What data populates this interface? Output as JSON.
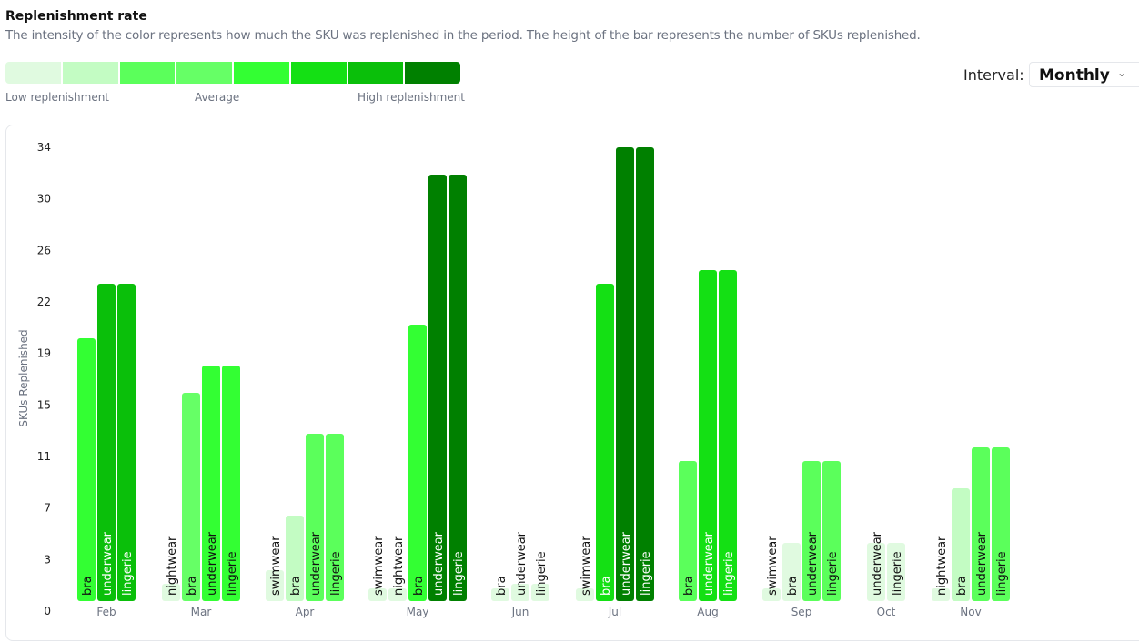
{
  "header": {
    "title": "Replenishment rate",
    "subtitle": "The intensity of the color represents how much the SKU was replenished in the period. The height of the bar represents the number of SKUs replenished."
  },
  "legend": {
    "colors": [
      "#e0fae0",
      "#c3fcc3",
      "#5bff5b",
      "#66ff66",
      "#33ff33",
      "#14e014",
      "#0abf0a",
      "#008000"
    ],
    "low": "Low replenishment",
    "mid": "Average",
    "high": "High replenishment"
  },
  "interval": {
    "label": "Interval:",
    "value": "Monthly",
    "icon": "chevron-down-icon"
  },
  "chart_data": {
    "type": "bar",
    "ylabel": "SKUs Replenished",
    "ylim": [
      0,
      34
    ],
    "yticks": [
      "0",
      "3",
      "7",
      "11",
      "15",
      "19",
      "22",
      "26",
      "30",
      "34"
    ],
    "groups": [
      {
        "month": "Feb",
        "bars": [
          {
            "sku": "bra",
            "value": 20,
            "level": 4
          },
          {
            "sku": "underwear",
            "value": 24,
            "level": 6
          },
          {
            "sku": "lingerie",
            "value": 24,
            "level": 6
          }
        ]
      },
      {
        "month": "Mar",
        "bars": [
          {
            "sku": "nightwear",
            "value": 2,
            "level": 0
          },
          {
            "sku": "bra",
            "value": 16,
            "level": 3
          },
          {
            "sku": "underwear",
            "value": 18,
            "level": 4
          },
          {
            "sku": "lingerie",
            "value": 18,
            "level": 4
          }
        ]
      },
      {
        "month": "Apr",
        "bars": [
          {
            "sku": "swimwear",
            "value": 3,
            "level": 0
          },
          {
            "sku": "bra",
            "value": 7,
            "level": 1
          },
          {
            "sku": "underwear",
            "value": 13,
            "level": 2
          },
          {
            "sku": "lingerie",
            "value": 13,
            "level": 2
          }
        ]
      },
      {
        "month": "May",
        "bars": [
          {
            "sku": "swimwear",
            "value": 1,
            "level": 0
          },
          {
            "sku": "nightwear",
            "value": 1,
            "level": 0
          },
          {
            "sku": "bra",
            "value": 21,
            "level": 4
          },
          {
            "sku": "underwear",
            "value": 32,
            "level": 7
          },
          {
            "sku": "lingerie",
            "value": 32,
            "level": 7
          }
        ]
      },
      {
        "month": "Jun",
        "bars": [
          {
            "sku": "bra",
            "value": 1,
            "level": 0
          },
          {
            "sku": "underwear",
            "value": 2,
            "level": 0
          },
          {
            "sku": "lingerie",
            "value": 2,
            "level": 0
          }
        ]
      },
      {
        "month": "Jul",
        "bars": [
          {
            "sku": "swimwear",
            "value": 1,
            "level": 0
          },
          {
            "sku": "bra",
            "value": 24,
            "level": 5
          },
          {
            "sku": "underwear",
            "value": 34,
            "level": 7
          },
          {
            "sku": "lingerie",
            "value": 34,
            "level": 7
          }
        ]
      },
      {
        "month": "Aug",
        "bars": [
          {
            "sku": "bra",
            "value": 11,
            "level": 2
          },
          {
            "sku": "underwear",
            "value": 25,
            "level": 5
          },
          {
            "sku": "lingerie",
            "value": 25,
            "level": 5
          }
        ]
      },
      {
        "month": "Sep",
        "bars": [
          {
            "sku": "swimwear",
            "value": 1,
            "level": 0
          },
          {
            "sku": "bra",
            "value": 5,
            "level": 0
          },
          {
            "sku": "underwear",
            "value": 11,
            "level": 2
          },
          {
            "sku": "lingerie",
            "value": 11,
            "level": 2
          }
        ]
      },
      {
        "month": "Oct",
        "bars": [
          {
            "sku": "underwear",
            "value": 5,
            "level": 0
          },
          {
            "sku": "lingerie",
            "value": 5,
            "level": 0
          }
        ]
      },
      {
        "month": "Nov",
        "bars": [
          {
            "sku": "nightwear",
            "value": 1,
            "level": 0
          },
          {
            "sku": "bra",
            "value": 9,
            "level": 1
          },
          {
            "sku": "underwear",
            "value": 12,
            "level": 2
          },
          {
            "sku": "lingerie",
            "value": 12,
            "level": 2
          }
        ]
      }
    ]
  }
}
